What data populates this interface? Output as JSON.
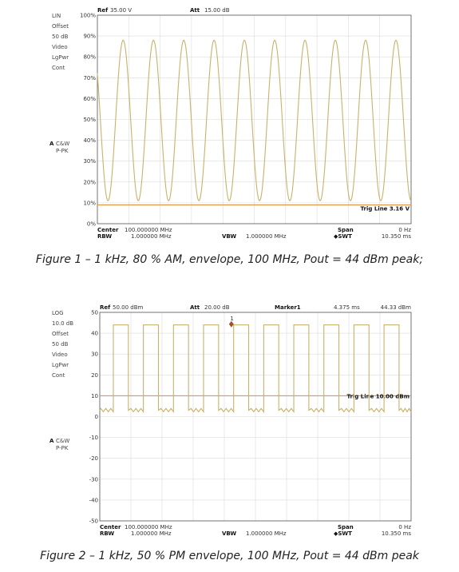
{
  "figures": [
    {
      "caption": "Figure 1 – 1 kHz, 80 % AM, envelope, 100 MHz, Pout = 44 dBm peak;",
      "header": {
        "ref_label": "Ref",
        "ref_value": "35.00 V",
        "att_label": "Att",
        "att_value": "15.00 dB"
      },
      "side_labels": [
        "LIN",
        "Offset",
        "50 dB",
        "Video",
        "LgPwr",
        "Cont"
      ],
      "trace_labels": [
        "A",
        "C&W",
        "P-PK"
      ],
      "footer": {
        "center_label": "Center",
        "center_value": "100.000000 MHz",
        "rbw_label": "RBW",
        "rbw_value": "1.000000 MHz",
        "vbw_label": "VBW",
        "vbw_value": "1.000000 MHz",
        "span_label": "Span",
        "span_value": "0 Hz",
        "swt_label": "◆SWT",
        "swt_value": "10.350 ms"
      },
      "trig_label": "Trig Line 3.16 V"
    },
    {
      "caption": "Figure 2 – 1 kHz, 50 % PM envelope, 100 MHz, Pout = 44 dBm peak",
      "header": {
        "ref_label": "Ref",
        "ref_value": "50.00 dBm",
        "att_label": "Att",
        "att_value": "20.00 dB",
        "marker_label": "Marker1",
        "marker_time": "4.375 ms",
        "marker_value": "44.33 dBm"
      },
      "side_labels": [
        "LOG",
        "10.0 dB",
        "Offset",
        "50 dB",
        "Video",
        "LgPwr",
        "Cont"
      ],
      "trace_labels": [
        "A",
        "C&W",
        "P-PK"
      ],
      "footer": {
        "center_label": "Center",
        "center_value": "100.000000 MHz",
        "rbw_label": "RBW",
        "rbw_value": "1.000000 MHz",
        "vbw_label": "VBW",
        "vbw_value": "1.000000 MHz",
        "span_label": "Span",
        "span_value": "0 Hz",
        "swt_label": "◆SWT",
        "swt_value": "10.350 ms"
      },
      "trig_label": "Trig Line 10.00 dBm"
    }
  ],
  "colors": {
    "trace": "#c8b26a",
    "trig": "#e08a3c",
    "grid": "#dcdcdc",
    "frame": "#555555",
    "marker": "#a0522d",
    "trace_label": "#c8a030"
  },
  "chart_data": [
    {
      "type": "line",
      "x_unit": "ms",
      "xlim": [
        0,
        10.35
      ],
      "y_unit": "%",
      "ylim": [
        0,
        100
      ],
      "yticks": [
        "100%",
        "90%",
        "80%",
        "70%",
        "60%",
        "50%",
        "40%",
        "30%",
        "20%",
        "10%",
        "0%"
      ],
      "series": [
        {
          "shape": "sinusoid",
          "frequency_khz": 1.0,
          "y_max": 88,
          "y_min": 11,
          "first_peak_ms": 0.85
        }
      ],
      "trigger_level": 9
    },
    {
      "type": "line",
      "x_unit": "ms",
      "xlim": [
        0,
        10.35
      ],
      "y_unit": "dB",
      "ylim": [
        -50,
        50
      ],
      "yticks": [
        "50",
        "40",
        "30",
        "20",
        "10",
        "0",
        "-10",
        "-20",
        "-30",
        "-40",
        "-50"
      ],
      "series": [
        {
          "shape": "square",
          "frequency_khz": 1.0,
          "y_high": 44,
          "y_low": 3,
          "duty": 0.5,
          "first_rise_ms": 0.45
        }
      ],
      "trigger_level": 10,
      "marker": {
        "time_ms": 4.375,
        "value": 44.33
      }
    }
  ]
}
